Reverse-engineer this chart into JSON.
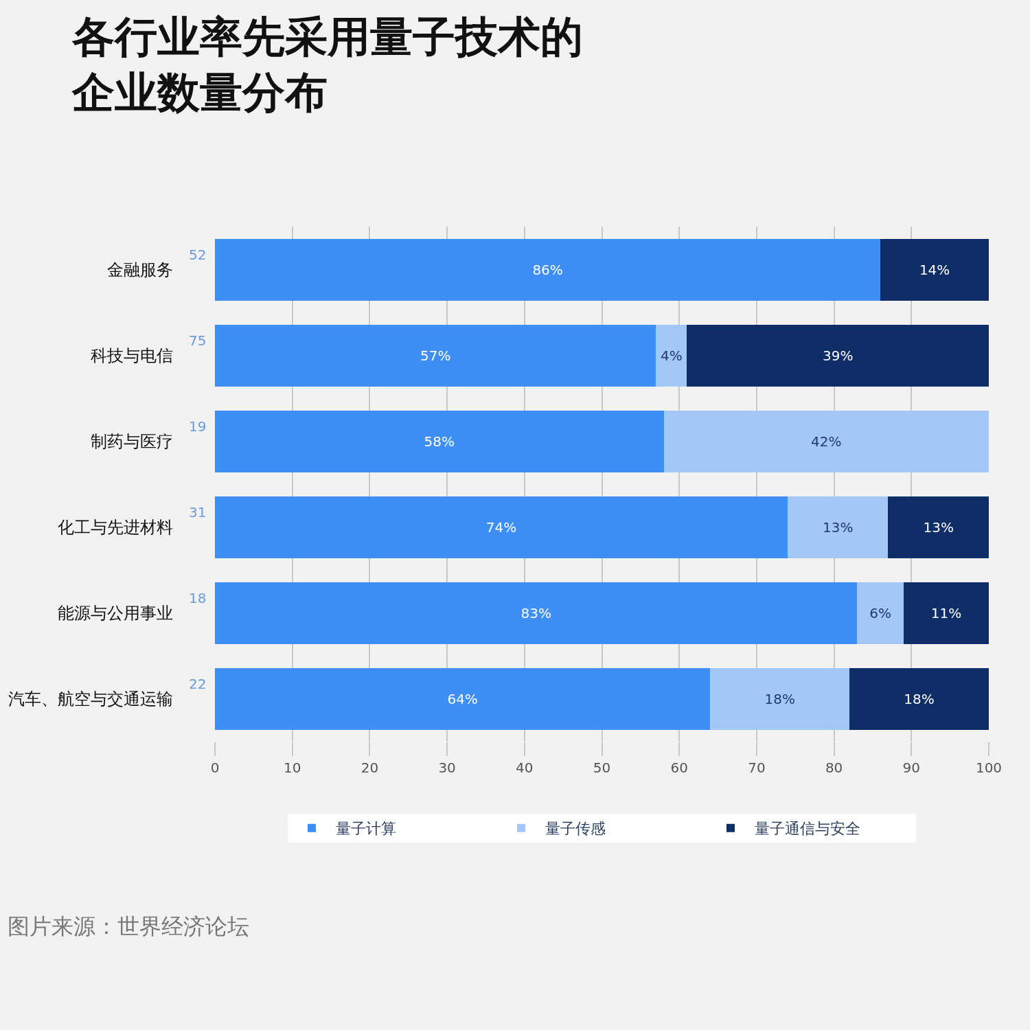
{
  "chart_data": {
    "type": "bar",
    "orientation": "horizontal",
    "stacked": true,
    "title": "各行业率先采用量子技术的企业数量分布",
    "categories": [
      "金融服务",
      "科技与电信",
      "制药与医疗",
      "化工与先进材料",
      "能源与公用事业",
      "汽车、航空与交通运输"
    ],
    "series": [
      {
        "name": "量子计算",
        "color": "#3d8ff5",
        "values": [
          86,
          57,
          58,
          74,
          83,
          64
        ],
        "value_labels": [
          "86%",
          "57%",
          "58%",
          "74%",
          "83%",
          "64%"
        ]
      },
      {
        "name": "量子传感",
        "color": "#a3c8f8",
        "values": [
          0,
          4,
          42,
          13,
          6,
          18
        ],
        "value_labels": [
          null,
          "4%",
          "42%",
          "13%",
          "6%",
          "18%"
        ]
      },
      {
        "name": "量子通信与安全",
        "color": "#0f2d66",
        "values": [
          14,
          39,
          0,
          13,
          11,
          18
        ],
        "value_labels": [
          "14%",
          "39%",
          null,
          "13%",
          "11%",
          "18%"
        ]
      }
    ],
    "xlim": [
      0,
      100
    ],
    "xticks": [
      0,
      10,
      20,
      30,
      40,
      50,
      60,
      70,
      80,
      90,
      100
    ],
    "grid": "x",
    "legend": "bottom",
    "annotations": [
      "52",
      "75",
      "19",
      "31",
      "18",
      "22",
      "图片来源：世界经济论坛"
    ]
  }
}
